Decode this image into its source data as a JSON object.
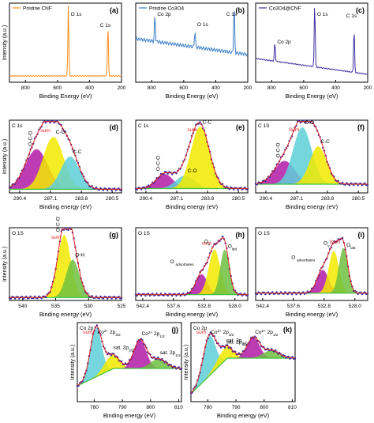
{
  "panel_letters": [
    "(a)",
    "(b)",
    "(c)",
    "(d)",
    "(e)",
    "(f)",
    "(g)",
    "(h)",
    "(i)",
    "(j)",
    "(k)"
  ],
  "colors": {
    "axis": "#000000",
    "cnf_line": "#ff8c1a",
    "co3o4_line": "#3a7fc8",
    "composite_line": "#3b2fa0",
    "sum_line": "#e02020",
    "raw_points": "#3b2fa0",
    "background_line": "#40c040",
    "magenta_peak": "#b31aa6",
    "yellow_peak": "#f2ea00",
    "cyan_peak": "#5ecfd8",
    "green_peak": "#6fbf3f",
    "label_red": "#e02020"
  },
  "chart_data": [
    {
      "panel": "(a)",
      "type": "line",
      "legend": "Pristine CNF",
      "xlabel": "Binding Energy (eV)",
      "ylabel": "Intensity (a.u.)",
      "xlim": [
        900,
        200
      ],
      "x_ticks": [
        "800",
        "600",
        "400",
        "200"
      ],
      "annotations": [
        "O 1s",
        "C 1s"
      ],
      "series": [
        {
          "name": "Pristine CNF",
          "peaks": [
            {
              "x": 532,
              "height": 0.92
            },
            {
              "x": 285,
              "height": 0.68
            }
          ],
          "baseline": 0.08
        }
      ]
    },
    {
      "panel": "(b)",
      "type": "line",
      "legend": "Pristine Co3O4",
      "xlabel": "Binding Energy (eV)",
      "ylabel": "",
      "xlim": [
        900,
        200
      ],
      "x_ticks": [
        "800",
        "600",
        "400",
        "200"
      ],
      "annotations": [
        "Co 2p",
        "O 1s",
        "C 1s"
      ],
      "series": [
        {
          "name": "Pristine Co3O4",
          "peaks": [
            {
              "x": 780,
              "height": 0.35
            },
            {
              "x": 530,
              "height": 0.22
            },
            {
              "x": 285,
              "height": 0.62
            }
          ],
          "baseline": 0.55
        }
      ]
    },
    {
      "panel": "(c)",
      "type": "line",
      "legend": "Co3O4@CNF",
      "xlabel": "Binding Energy (eV)",
      "ylabel": "",
      "xlim": [
        900,
        200
      ],
      "x_ticks": [
        "800",
        "600",
        "400",
        "200"
      ],
      "annotations": [
        "Co 2p",
        "O 1s",
        "C 1s"
      ],
      "series": [
        {
          "name": "Co3O4@CNF",
          "peaks": [
            {
              "x": 780,
              "height": 0.25
            },
            {
              "x": 531,
              "height": 0.85
            },
            {
              "x": 285,
              "height": 0.58
            }
          ],
          "baseline": 0.3
        }
      ]
    },
    {
      "panel": "(d)",
      "type": "area",
      "title": "C 1s",
      "xlabel": "Binding energy (eV)",
      "ylabel": "Intensity (a.u.)",
      "xlim": [
        291.5,
        279.5
      ],
      "x_ticks": [
        "290.4",
        "287.1",
        "283.8",
        "280.5"
      ],
      "annotations": [
        "sum",
        "O-C-O",
        "C-O",
        "C-C"
      ],
      "series": [
        {
          "name": "O-C-O",
          "center": 288.6,
          "height": 0.55,
          "width": 1.2
        },
        {
          "name": "C-O",
          "center": 286.8,
          "height": 0.72,
          "width": 1.1
        },
        {
          "name": "C-C",
          "center": 285.0,
          "height": 0.45,
          "width": 1.0
        }
      ],
      "background": 0.05
    },
    {
      "panel": "(e)",
      "type": "area",
      "title": "C 1s",
      "xlabel": "Binding energy (eV)",
      "ylabel": "",
      "xlim": [
        291.5,
        279.5
      ],
      "x_ticks": [
        "290.4",
        "287.1",
        "283.8",
        "280.5"
      ],
      "annotations": [
        "sum",
        "O-C-O",
        "C-O",
        "C-C"
      ],
      "series": [
        {
          "name": "O-C-O",
          "center": 288.4,
          "height": 0.2,
          "width": 0.9
        },
        {
          "name": "C-O",
          "center": 286.2,
          "height": 0.18,
          "width": 1.0
        },
        {
          "name": "C-C",
          "center": 284.6,
          "height": 0.85,
          "width": 1.0
        }
      ],
      "background": 0.06
    },
    {
      "panel": "(f)",
      "type": "area",
      "title": "C 1S",
      "xlabel": "Binding energy (eV)",
      "ylabel": "",
      "xlim": [
        291.5,
        279.5
      ],
      "x_ticks": [
        "290.4",
        "287.1",
        "283.8",
        "280.5"
      ],
      "annotations": [
        "Sum",
        "O-C-O",
        "C-O",
        "C-C"
      ],
      "series": [
        {
          "name": "O-C-O",
          "center": 288.4,
          "height": 0.32,
          "width": 1.1
        },
        {
          "name": "C-O",
          "center": 286.5,
          "height": 0.78,
          "width": 1.0
        },
        {
          "name": "C-C",
          "center": 284.8,
          "height": 0.52,
          "width": 0.9
        }
      ],
      "background": 0.12
    },
    {
      "panel": "(g)",
      "type": "area",
      "title": "O 1S",
      "xlabel": "Binding energy (eV)",
      "ylabel": "Intensity (a.u.)",
      "xlim": [
        542,
        525
      ],
      "x_ticks": [
        "540",
        "535",
        "530",
        "525"
      ],
      "annotations": [
        "O-C-O",
        "sum",
        "O-H"
      ],
      "series": [
        {
          "name": "O-C-O",
          "center": 533.7,
          "height": 0.86,
          "width": 1.0
        },
        {
          "name": "O-H",
          "center": 532.4,
          "height": 0.52,
          "width": 1.0
        }
      ],
      "background": 0.04
    },
    {
      "panel": "(h)",
      "type": "area",
      "title": "O 1S",
      "xlabel": "Binding energy (eV)",
      "ylabel": "",
      "xlim": [
        543.5,
        526
      ],
      "x_ticks": [
        "542.4",
        "537.6",
        "532.8",
        "528.0"
      ],
      "annotations": [
        "sum",
        "O adsorbates",
        "O v",
        "O latt"
      ],
      "series": [
        {
          "name": "O adsorbates",
          "center": 533.2,
          "height": 0.28,
          "width": 0.9
        },
        {
          "name": "O v",
          "center": 531.2,
          "height": 0.62,
          "width": 0.9
        },
        {
          "name": "O latt",
          "center": 529.6,
          "height": 0.62,
          "width": 0.7
        }
      ],
      "background": 0.08
    },
    {
      "panel": "(i)",
      "type": "area",
      "title": "O 1S",
      "xlabel": "Binding energy (eV)",
      "ylabel": "",
      "xlim": [
        543.5,
        526
      ],
      "x_ticks": [
        "542.4",
        "537.6",
        "532.8",
        "528.0"
      ],
      "annotations": [
        "Sum",
        "O adsorbates",
        "O v",
        "O latt"
      ],
      "series": [
        {
          "name": "O adsorbates",
          "center": 533.0,
          "height": 0.32,
          "width": 0.9
        },
        {
          "name": "O v",
          "center": 531.3,
          "height": 0.58,
          "width": 0.8
        },
        {
          "name": "O latt",
          "center": 529.8,
          "height": 0.62,
          "width": 0.7
        }
      ],
      "background": 0.1
    },
    {
      "panel": "(j)",
      "type": "area",
      "title": "Co 2p",
      "xlabel": "Binding energy (eV)",
      "ylabel": "Intensity (a.u.)",
      "xlim": [
        774,
        811
      ],
      "x_ticks": [
        "780",
        "790",
        "800",
        "810"
      ],
      "annotations": [
        "sum",
        "Co2+ 2p3/2",
        "Co2+ 2p1/2",
        "sat. 2p3/2",
        "sat. 2p1/2"
      ],
      "series": [
        {
          "name": "Co2+ 2p3/2",
          "center": 780.6,
          "height": 0.62,
          "width": 2.0
        },
        {
          "name": "sat. 2p3/2",
          "center": 786.2,
          "height": 0.18,
          "width": 2.6
        },
        {
          "name": "Co2+ 2p1/2",
          "center": 796.3,
          "height": 0.36,
          "width": 2.2
        },
        {
          "name": "sat. 2p1/2",
          "center": 802.8,
          "height": 0.12,
          "width": 2.8
        }
      ],
      "background": [
        0.2,
        0.42
      ]
    },
    {
      "panel": "(k)",
      "type": "area",
      "title": "Co 2p",
      "xlabel": "Binding energy (eV)",
      "ylabel": "Intensity (a.u.)",
      "xlim": [
        774,
        811
      ],
      "x_ticks": [
        "780",
        "790",
        "800",
        "810"
      ],
      "annotations": [
        "sum",
        "Co2+ 2p3/2",
        "Co2+ 2p1/2",
        "sat. 2p3/2",
        "sat. 2p3/2"
      ],
      "series": [
        {
          "name": "Co2+ 2p3/2",
          "center": 780.5,
          "height": 0.5,
          "width": 2.2
        },
        {
          "name": "sat. 2p3/2",
          "center": 786.0,
          "height": 0.16,
          "width": 2.8
        },
        {
          "name": "Co2+ 2p1/2",
          "center": 796.2,
          "height": 0.26,
          "width": 2.2
        },
        {
          "name": "sat. 2p1/2",
          "center": 802.5,
          "height": 0.1,
          "width": 2.8
        }
      ],
      "background": [
        0.1,
        0.55
      ]
    }
  ]
}
